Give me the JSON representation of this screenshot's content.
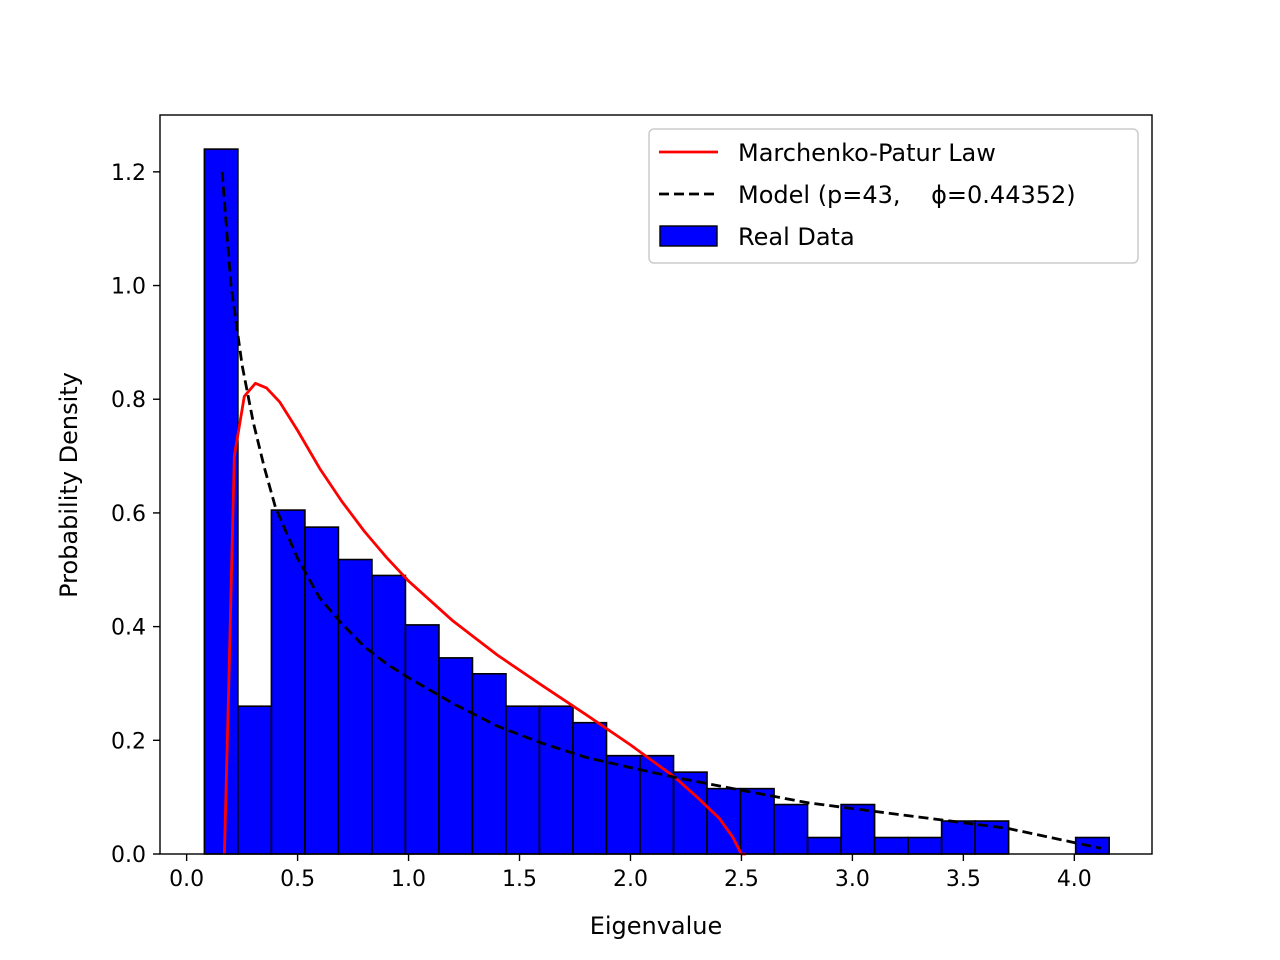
{
  "chart_data": {
    "type": "bar",
    "xlabel": "Eigenvalue",
    "ylabel": "Probability Density",
    "xlim": [
      -0.12,
      4.35
    ],
    "ylim": [
      0,
      1.3
    ],
    "xticks": [
      0.0,
      0.5,
      1.0,
      1.5,
      2.0,
      2.5,
      3.0,
      3.5,
      4.0
    ],
    "xtick_labels": [
      "0.0",
      "0.5",
      "1.0",
      "1.5",
      "2.0",
      "2.5",
      "3.0",
      "3.5",
      "4.0"
    ],
    "yticks": [
      0.0,
      0.2,
      0.4,
      0.6,
      0.8,
      1.0,
      1.2
    ],
    "ytick_labels": [
      "0.0",
      "0.2",
      "0.4",
      "0.6",
      "0.8",
      "1.0",
      "1.2"
    ],
    "grid": false,
    "legend": {
      "location": "upper right",
      "entries": [
        {
          "label": "Marchenko-Patur Law",
          "color": "#ff0000",
          "style": "solid line"
        },
        {
          "label": "Model (p=43,    ϕ=0.44352)",
          "color": "#000000",
          "style": "dashed line"
        },
        {
          "label": "Real Data",
          "color": "#0000ff",
          "style": "patch"
        }
      ]
    },
    "histogram": {
      "name": "Real Data",
      "color": "#0000ff",
      "edgecolor": "#000000",
      "bin_edges": [
        0.08,
        0.231,
        0.382,
        0.533,
        0.684,
        0.835,
        0.986,
        1.137,
        1.288,
        1.439,
        1.59,
        1.741,
        1.892,
        2.043,
        2.194,
        2.345,
        2.496,
        2.647,
        2.798,
        2.949,
        3.1,
        3.251,
        3.402,
        3.553,
        3.704,
        3.855,
        4.006,
        4.157
      ],
      "values": [
        1.24,
        0.26,
        0.605,
        0.575,
        0.518,
        0.49,
        0.403,
        0.345,
        0.317,
        0.26,
        0.26,
        0.231,
        0.173,
        0.173,
        0.144,
        0.115,
        0.115,
        0.087,
        0.029,
        0.087,
        0.029,
        0.029,
        0.058,
        0.058,
        0.0,
        0.0,
        0.029
      ]
    },
    "series": [
      {
        "name": "Marchenko-Patur Law",
        "color": "#ff0000",
        "x": [
          0.17,
          0.19,
          0.215,
          0.26,
          0.31,
          0.36,
          0.42,
          0.5,
          0.6,
          0.7,
          0.8,
          0.9,
          1.0,
          1.2,
          1.4,
          1.6,
          1.8,
          2.0,
          2.2,
          2.3,
          2.4,
          2.46,
          2.5,
          2.52
        ],
        "y": [
          0.0,
          0.3,
          0.7,
          0.805,
          0.828,
          0.82,
          0.795,
          0.745,
          0.678,
          0.62,
          0.568,
          0.522,
          0.48,
          0.41,
          0.35,
          0.297,
          0.245,
          0.192,
          0.135,
          0.1,
          0.063,
          0.03,
          0.0,
          0.0
        ]
      },
      {
        "name": "Model (p=43,    ϕ=0.44352)",
        "color": "#000000",
        "dash": true,
        "x": [
          0.16,
          0.2,
          0.25,
          0.3,
          0.35,
          0.4,
          0.5,
          0.6,
          0.7,
          0.8,
          0.9,
          1.0,
          1.2,
          1.4,
          1.6,
          1.8,
          2.0,
          2.2,
          2.5,
          2.8,
          3.1,
          3.4,
          3.7,
          4.0,
          4.12
        ],
        "y": [
          1.2,
          1.0,
          0.86,
          0.76,
          0.68,
          0.61,
          0.52,
          0.45,
          0.405,
          0.365,
          0.335,
          0.31,
          0.265,
          0.225,
          0.195,
          0.17,
          0.152,
          0.135,
          0.112,
          0.09,
          0.075,
          0.06,
          0.045,
          0.02,
          0.01
        ]
      }
    ]
  }
}
